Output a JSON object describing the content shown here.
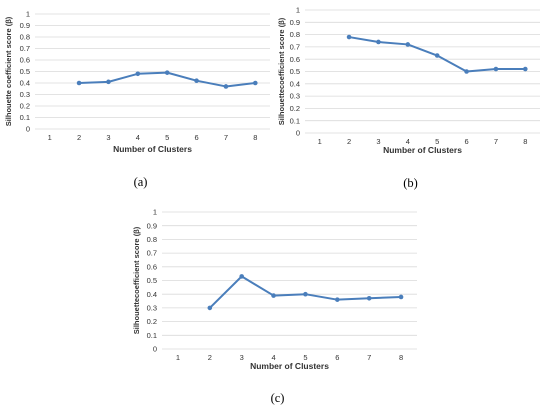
{
  "colors": {
    "series": "#4a7ebb",
    "grid": "#dadada",
    "text": "#333333"
  },
  "chart_data": [
    {
      "id": "a",
      "panel_label": "(a)",
      "type": "line",
      "x": [
        1,
        2,
        3,
        4,
        5,
        6,
        7,
        8
      ],
      "series": [
        {
          "values": [
            null,
            0.4,
            0.41,
            0.48,
            0.49,
            0.42,
            0.37,
            0.4
          ]
        }
      ],
      "xlabel": "Number of Clusters",
      "ylabel": "Silhouette coefficient score (β)",
      "ylim": [
        0,
        1
      ],
      "yticks": [
        "0",
        "0.1",
        "0.2",
        "0.3",
        "0.4",
        "0.5",
        "0.6",
        "0.7",
        "0.8",
        "0.9",
        "1"
      ],
      "xticks": [
        "1",
        "2",
        "3",
        "4",
        "5",
        "6",
        "7",
        "8"
      ],
      "grid": true
    },
    {
      "id": "b",
      "panel_label": "(b)",
      "type": "line",
      "x": [
        1,
        2,
        3,
        4,
        5,
        6,
        7,
        8
      ],
      "series": [
        {
          "values": [
            null,
            0.78,
            0.74,
            0.72,
            0.63,
            0.5,
            0.52,
            0.52
          ]
        }
      ],
      "xlabel": "Number of Clusters",
      "ylabel": "Silhouettecoefficient score (β)",
      "ylim": [
        0,
        1
      ],
      "yticks": [
        "0",
        "0.1",
        "0.2",
        "0.3",
        "0.4",
        "0.5",
        "0.6",
        "0.7",
        "0.8",
        "0.9",
        "1"
      ],
      "xticks": [
        "1",
        "2",
        "3",
        "4",
        "5",
        "6",
        "7",
        "8"
      ],
      "grid": true
    },
    {
      "id": "c",
      "panel_label": "(c)",
      "type": "line",
      "x": [
        1,
        2,
        3,
        4,
        5,
        6,
        7,
        8
      ],
      "series": [
        {
          "values": [
            null,
            0.3,
            0.53,
            0.39,
            0.4,
            0.36,
            0.37,
            0.38
          ]
        }
      ],
      "xlabel": "Number of Clusters",
      "ylabel": "Silhouettecoefficient score (β)",
      "ylim": [
        0,
        1
      ],
      "yticks": [
        "0",
        "0.1",
        "0.2",
        "0.3",
        "0.4",
        "0.5",
        "0.6",
        "0.7",
        "0.8",
        "0.9",
        "1"
      ],
      "xticks": [
        "1",
        "2",
        "3",
        "4",
        "5",
        "6",
        "7",
        "8"
      ],
      "grid": true
    }
  ]
}
